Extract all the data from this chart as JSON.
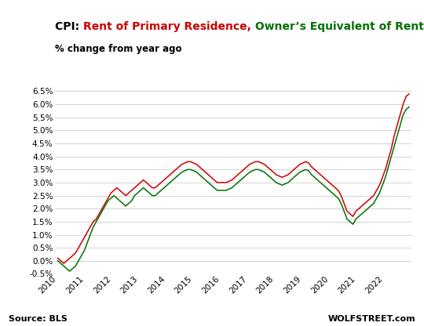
{
  "title_black": "CPI: ",
  "title_red": "Rent of Primary Residence,",
  "title_green": " Owner’s Equivalent of Rent",
  "subtitle": "% change from year ago",
  "source": "Source: BLS",
  "watermark": "WOLFSTREET.com",
  "color_red": "#cc0000",
  "color_green": "#007000",
  "color_black": "#000000",
  "background_color": "#ffffff",
  "grid_color": "#cccccc",
  "ylim": [
    -0.5,
    6.5
  ],
  "yticks": [
    -0.5,
    0.0,
    0.5,
    1.0,
    1.5,
    2.0,
    2.5,
    3.0,
    3.5,
    4.0,
    4.5,
    5.0,
    5.5,
    6.0,
    6.5
  ],
  "rent_primary": [
    0.1,
    0.0,
    -0.1,
    0.0,
    0.1,
    0.2,
    0.3,
    0.5,
    0.7,
    0.9,
    1.1,
    1.3,
    1.5,
    1.6,
    1.8,
    2.0,
    2.2,
    2.4,
    2.6,
    2.7,
    2.8,
    2.7,
    2.6,
    2.5,
    2.6,
    2.7,
    2.8,
    2.9,
    3.0,
    3.1,
    3.0,
    2.9,
    2.8,
    2.8,
    2.9,
    3.0,
    3.1,
    3.2,
    3.3,
    3.4,
    3.5,
    3.6,
    3.7,
    3.75,
    3.8,
    3.8,
    3.75,
    3.7,
    3.6,
    3.5,
    3.4,
    3.3,
    3.2,
    3.1,
    3.0,
    3.0,
    3.0,
    3.0,
    3.05,
    3.1,
    3.2,
    3.3,
    3.4,
    3.5,
    3.6,
    3.7,
    3.75,
    3.8,
    3.8,
    3.75,
    3.7,
    3.6,
    3.5,
    3.4,
    3.3,
    3.25,
    3.2,
    3.25,
    3.3,
    3.4,
    3.5,
    3.6,
    3.7,
    3.75,
    3.8,
    3.75,
    3.6,
    3.5,
    3.4,
    3.3,
    3.2,
    3.1,
    3.0,
    2.9,
    2.8,
    2.7,
    2.5,
    2.2,
    1.9,
    1.8,
    1.7,
    1.9,
    2.0,
    2.1,
    2.2,
    2.3,
    2.4,
    2.5,
    2.7,
    2.9,
    3.2,
    3.5,
    3.9,
    4.3,
    4.8,
    5.2,
    5.6,
    6.0,
    6.3,
    6.4
  ],
  "rent_oer": [
    0.0,
    -0.1,
    -0.2,
    -0.3,
    -0.4,
    -0.3,
    -0.2,
    0.0,
    0.2,
    0.4,
    0.7,
    1.0,
    1.3,
    1.5,
    1.7,
    1.9,
    2.1,
    2.3,
    2.4,
    2.5,
    2.4,
    2.3,
    2.2,
    2.1,
    2.2,
    2.3,
    2.5,
    2.6,
    2.7,
    2.8,
    2.7,
    2.6,
    2.5,
    2.5,
    2.6,
    2.7,
    2.8,
    2.9,
    3.0,
    3.1,
    3.2,
    3.3,
    3.4,
    3.45,
    3.5,
    3.5,
    3.45,
    3.4,
    3.3,
    3.2,
    3.1,
    3.0,
    2.9,
    2.8,
    2.7,
    2.7,
    2.7,
    2.7,
    2.75,
    2.8,
    2.9,
    3.0,
    3.1,
    3.2,
    3.3,
    3.4,
    3.45,
    3.5,
    3.5,
    3.45,
    3.4,
    3.3,
    3.2,
    3.1,
    3.0,
    2.95,
    2.9,
    2.95,
    3.0,
    3.1,
    3.2,
    3.3,
    3.4,
    3.45,
    3.5,
    3.45,
    3.3,
    3.2,
    3.1,
    3.0,
    2.9,
    2.8,
    2.7,
    2.6,
    2.5,
    2.4,
    2.2,
    1.9,
    1.6,
    1.5,
    1.4,
    1.6,
    1.7,
    1.8,
    1.9,
    2.0,
    2.1,
    2.2,
    2.4,
    2.6,
    2.9,
    3.2,
    3.6,
    4.0,
    4.4,
    4.8,
    5.2,
    5.6,
    5.8,
    5.9
  ]
}
